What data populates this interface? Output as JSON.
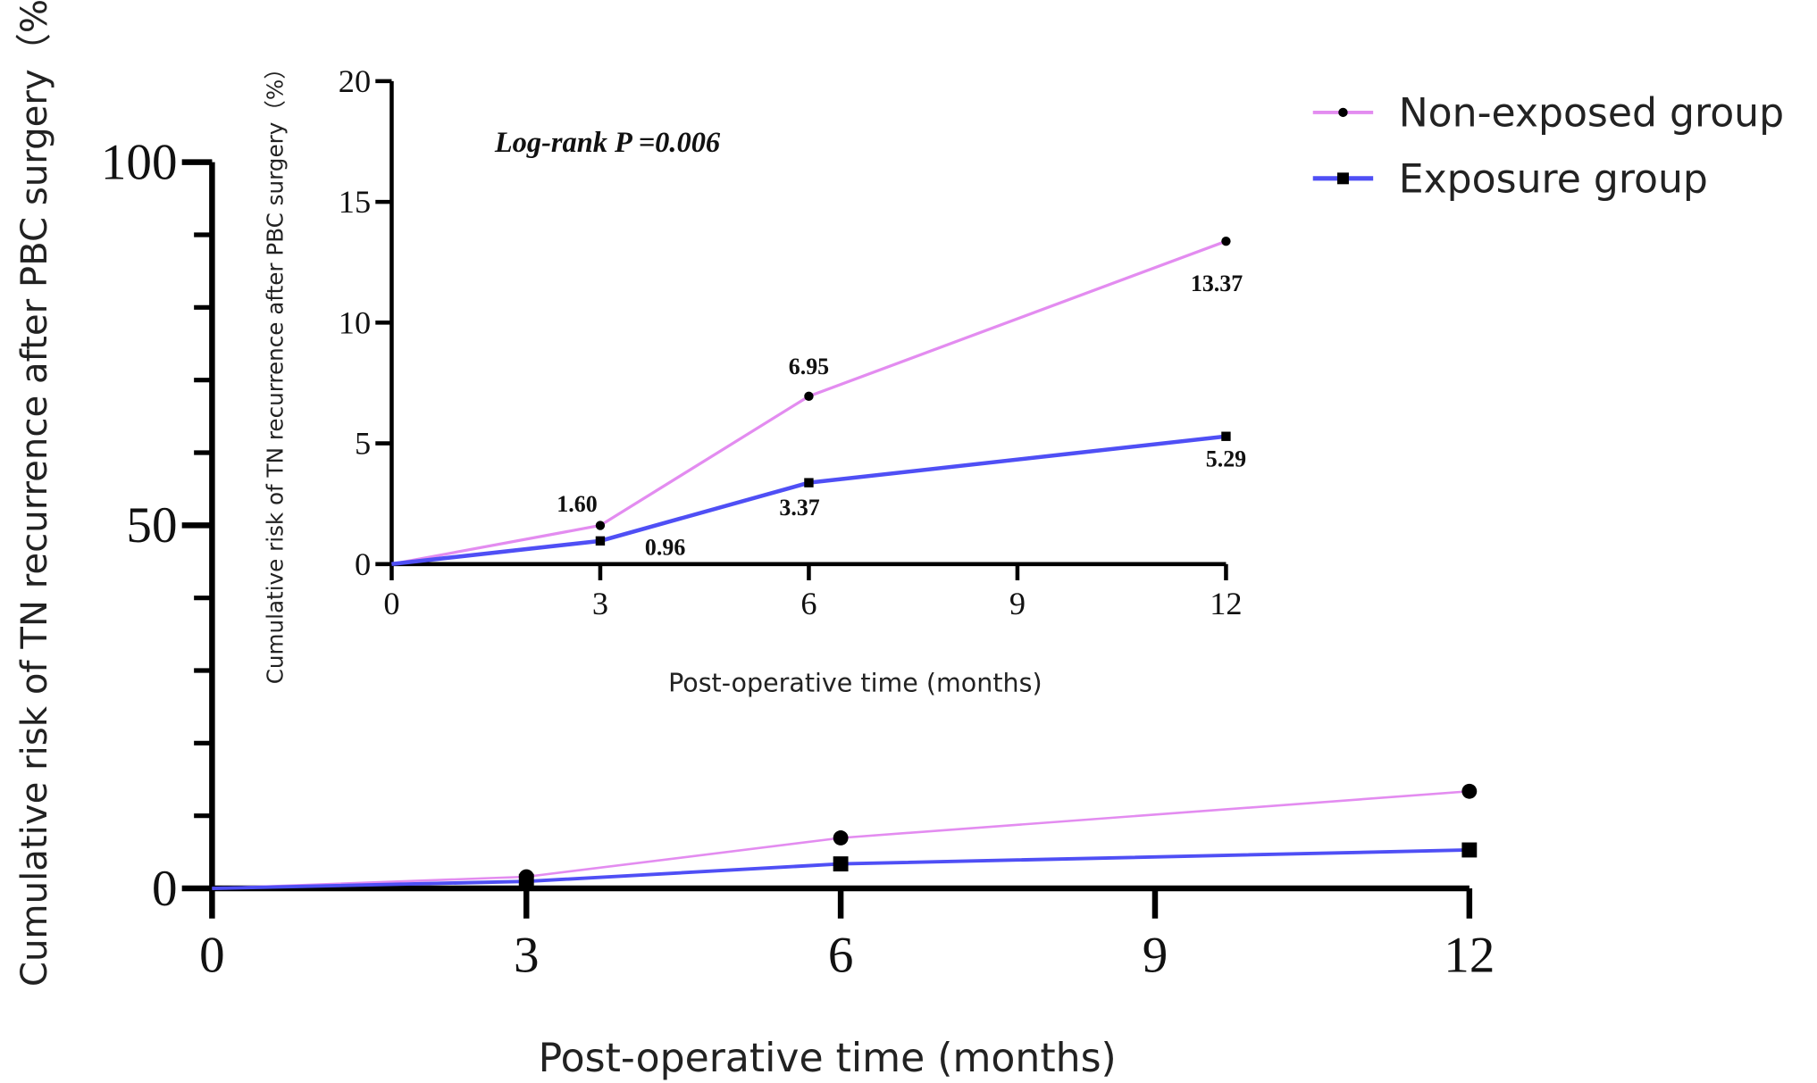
{
  "chart_data": [
    {
      "type": "line",
      "role": "main",
      "xlabel": "Post-operative time (months)",
      "ylabel": "Cumulative risk of TN recurrence after PBC surgery（%）",
      "x_ticks": [
        "0",
        "3",
        "6",
        "9",
        "12"
      ],
      "y_ticks": [
        "0",
        "50",
        "100"
      ],
      "xlim": [
        0,
        12
      ],
      "ylim": [
        0,
        100
      ],
      "y_minor_tick_step": 10,
      "grid": false,
      "x": [
        0,
        3,
        6,
        12
      ],
      "series": [
        {
          "name": "Non-exposed group",
          "values": [
            0,
            1.6,
            6.95,
            13.37
          ],
          "color": "#e38cf0",
          "marker": "circle"
        },
        {
          "name": "Exposure group",
          "values": [
            0,
            0.96,
            3.37,
            5.29
          ],
          "color": "#4f4ff5",
          "marker": "square"
        }
      ],
      "legend": {
        "position": "top-right",
        "entries": [
          "Non-exposed group",
          "Exposure group"
        ]
      }
    },
    {
      "type": "line",
      "role": "inset",
      "xlabel": "Post-operative time (months)",
      "ylabel": "Cumulative risk of TN recurrence after PBC surgery（%）",
      "x_ticks": [
        "0",
        "3",
        "6",
        "9",
        "12"
      ],
      "y_ticks": [
        "0",
        "5",
        "10",
        "15",
        "20"
      ],
      "xlim": [
        0,
        12
      ],
      "ylim": [
        0,
        20
      ],
      "grid": false,
      "annotation": "Log-rank P =0.006",
      "x": [
        0,
        3,
        6,
        12
      ],
      "series": [
        {
          "name": "Non-exposed group",
          "values": [
            0,
            1.6,
            6.95,
            13.37
          ],
          "labels": [
            "",
            "1.60",
            "6.95",
            "13.37"
          ],
          "color": "#e38cf0",
          "marker": "circle"
        },
        {
          "name": "Exposure group",
          "values": [
            0,
            0.96,
            3.37,
            5.29
          ],
          "labels": [
            "",
            "0.96",
            "3.37",
            "5.29"
          ],
          "color": "#4f4ff5",
          "marker": "square"
        }
      ]
    }
  ]
}
